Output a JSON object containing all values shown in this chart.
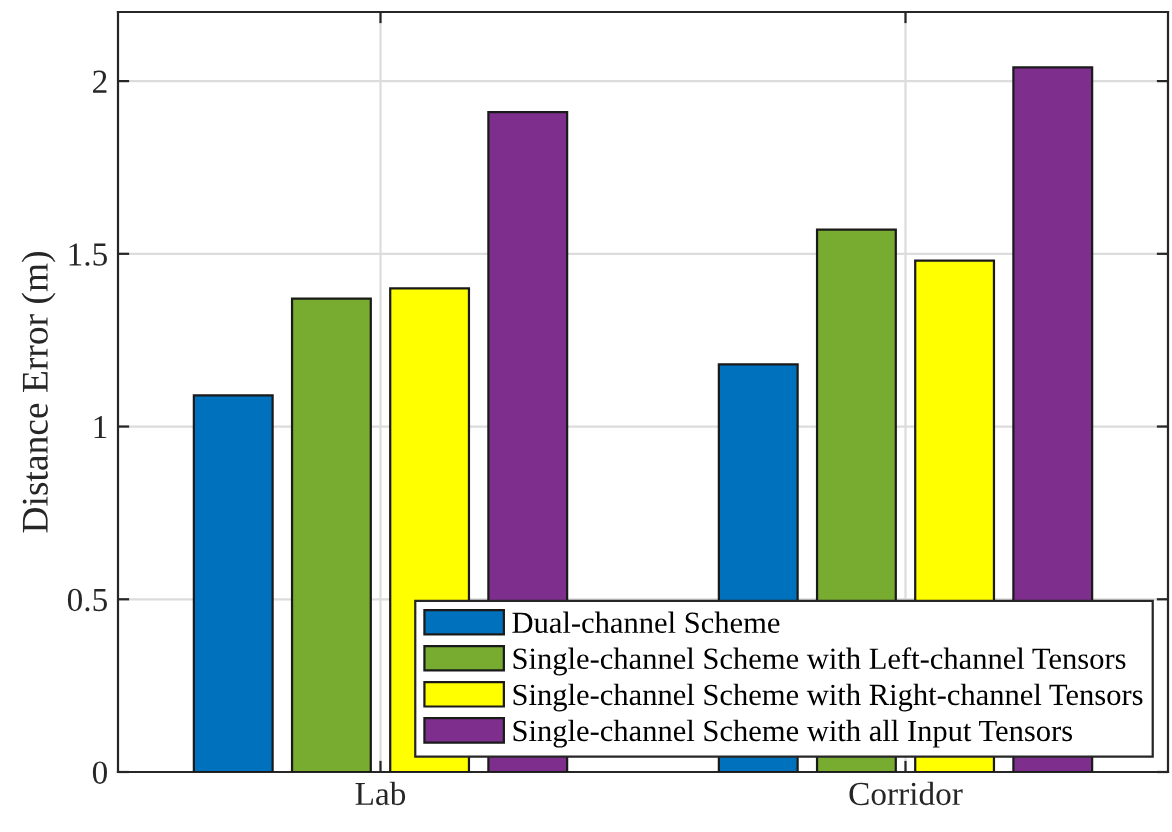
{
  "chart_data": {
    "type": "bar",
    "ylabel": "Distance Error (m)",
    "categories": [
      "Lab",
      "Corridor"
    ],
    "series": [
      {
        "name": "Dual-channel Scheme",
        "color": "#0072bd",
        "values": [
          1.09,
          1.18
        ]
      },
      {
        "name": "Single-channel Scheme with Left-channel Tensors",
        "color": "#77ac30",
        "values": [
          1.37,
          1.57
        ]
      },
      {
        "name": "Single-channel Scheme with Right-channel Tensors",
        "color": "#ffff00",
        "values": [
          1.4,
          1.48
        ]
      },
      {
        "name": "Single-channel Scheme with all Input Tensors",
        "color": "#7e2f8e",
        "values": [
          1.91,
          2.04
        ]
      }
    ],
    "ylim": [
      0,
      2.2
    ],
    "yticks": [
      0,
      0.5,
      1,
      1.5,
      2
    ],
    "grid": true,
    "legend": "bottom right"
  }
}
